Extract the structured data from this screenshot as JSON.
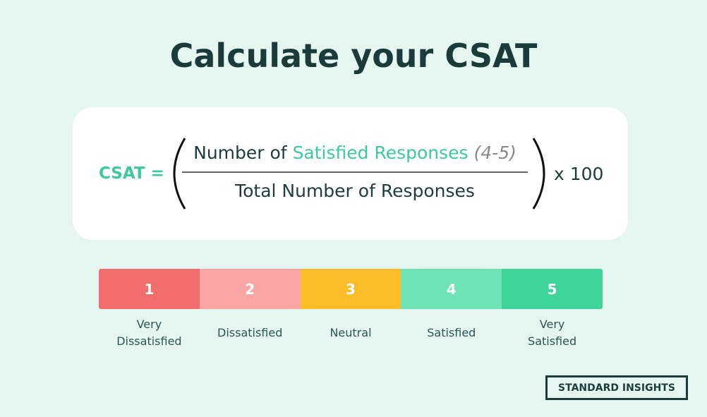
{
  "header": {
    "title": "Calculate your CSAT"
  },
  "formula": {
    "lhs": "CSAT =",
    "numerator": {
      "prefix": "Number of ",
      "highlight": "Satisfied Responses",
      "range": "(4-5)"
    },
    "denominator": "Total Number of Responses",
    "multiplier": "x 100"
  },
  "scale": [
    {
      "number": 1,
      "label": [
        "Very",
        "Dissatisfied"
      ]
    },
    {
      "number": 2,
      "label": [
        "Dissatisfied"
      ]
    },
    {
      "number": 3,
      "label": [
        "Neutral"
      ]
    },
    {
      "number": 4,
      "label": [
        "Satisfied"
      ]
    },
    {
      "number": 5,
      "label": [
        "Very",
        "Satisfied"
      ]
    }
  ],
  "logo": "STANDARD INSIGHTS"
}
